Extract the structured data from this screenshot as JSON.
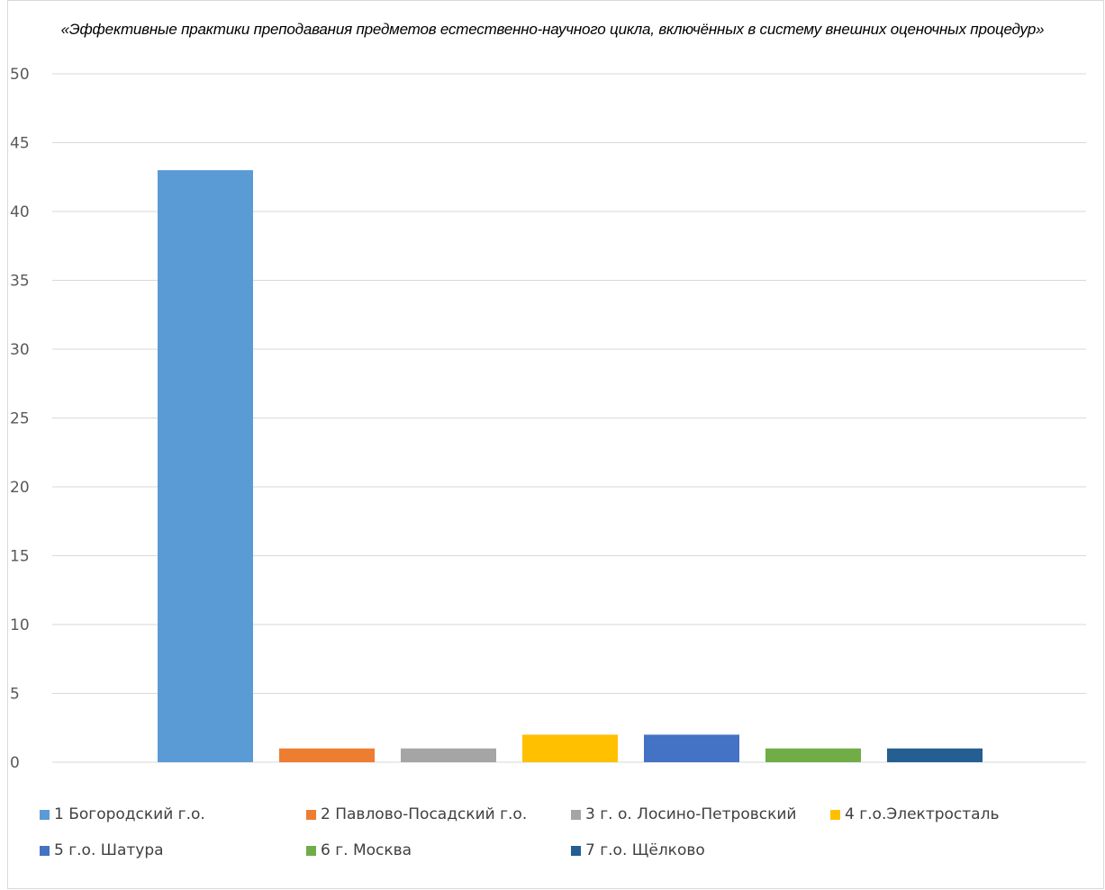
{
  "chart_data": {
    "type": "bar",
    "title": "«Эффективные практики преподавания предметов естественно-научного цикла, включённых в систему внешних оценочных процедур»",
    "xlabel": "",
    "ylabel": "",
    "ylim": [
      0,
      50
    ],
    "yticks": [
      "0",
      "5",
      "10",
      "15",
      "20",
      "25",
      "30",
      "35",
      "40",
      "45",
      "50"
    ],
    "grid": true,
    "legend_position": "bottom",
    "series": [
      {
        "name": "1 Богородский г.о.",
        "value": 43,
        "color": "#5b9bd5"
      },
      {
        "name": "2 Павлово-Посадский г.о.",
        "value": 1,
        "color": "#ed7d31"
      },
      {
        "name": "3 г. о. Лосино-Петровский",
        "value": 1,
        "color": "#a5a5a5"
      },
      {
        "name": "4 г.о.Электросталь",
        "value": 2,
        "color": "#ffc000"
      },
      {
        "name": "5 г.о. Шатура",
        "value": 2,
        "color": "#4472c4"
      },
      {
        "name": "6 г. Москва",
        "value": 1,
        "color": "#70ad47"
      },
      {
        "name": "7 г.о. Щёлково",
        "value": 1,
        "color": "#255e91"
      }
    ]
  }
}
